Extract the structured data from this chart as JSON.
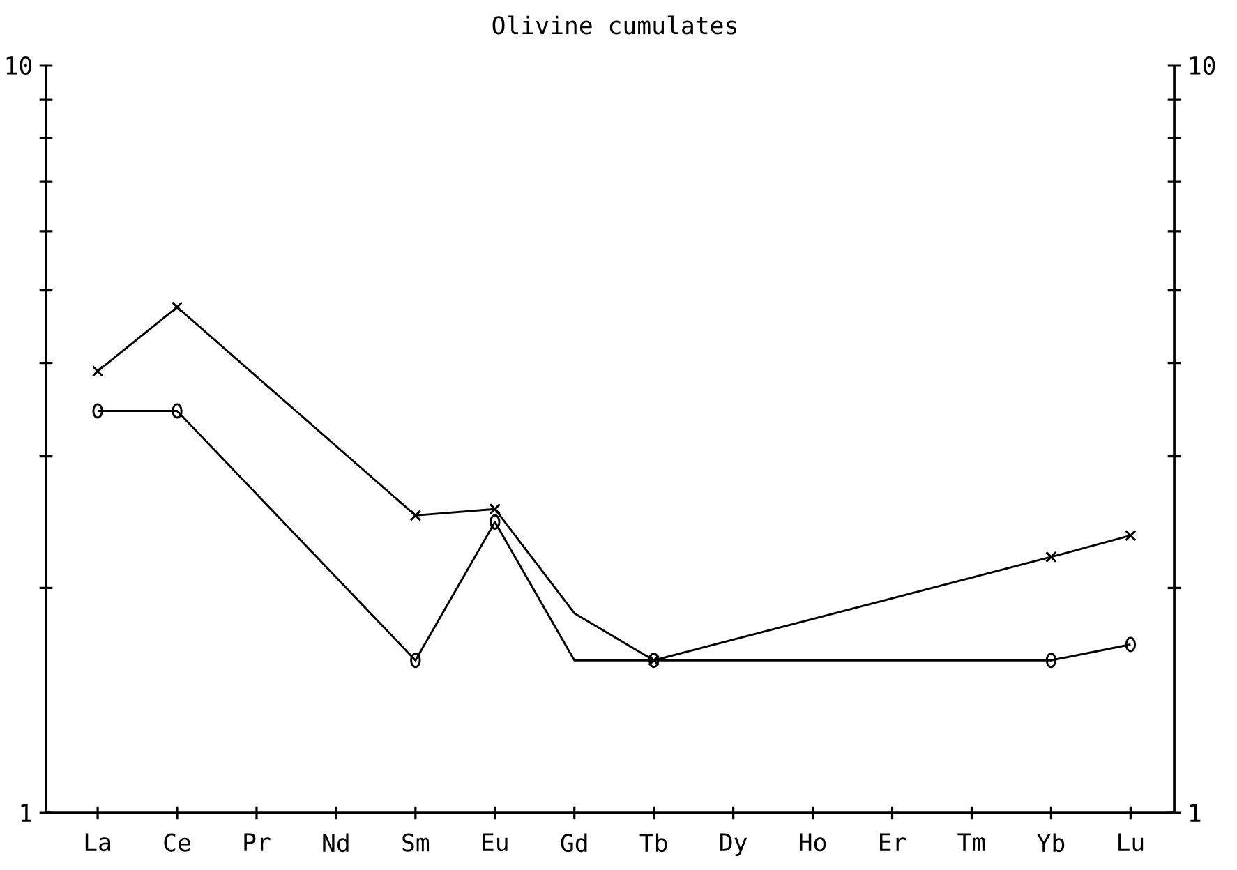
{
  "chart_data": {
    "type": "line",
    "title": "Olivine cumulates",
    "categories": [
      "La",
      "Ce",
      "Pr",
      "Nd",
      "Sm",
      "Eu",
      "Gd",
      "Tb",
      "Dy",
      "Ho",
      "Er",
      "Tm",
      "Yb",
      "Lu"
    ],
    "log": "y",
    "ylim": [
      1,
      10
    ],
    "yticks": [
      1,
      {
        "value": 2,
        "label": null
      },
      {
        "value": 3,
        "label": null
      },
      {
        "value": 4,
        "label": null
      },
      {
        "value": 5,
        "label": null
      },
      {
        "value": 6,
        "label": null
      },
      {
        "value": 7,
        "label": null
      },
      {
        "value": 8,
        "label": null
      },
      {
        "value": 9,
        "label": null
      },
      10
    ],
    "y2lim": [
      1,
      10
    ],
    "y2ticks": [
      1,
      10
    ],
    "line_style": "solid",
    "series": [
      {
        "type": "line",
        "color": "#000000",
        "marker": "none",
        "values": [
          3.9,
          4.75,
          null,
          null,
          2.5,
          2.55,
          1.85,
          1.6,
          null,
          null,
          null,
          null,
          2.2,
          2.35
        ]
      },
      {
        "type": "scatter",
        "color": "#000000",
        "marker": "cross",
        "values": [
          3.9,
          4.75,
          null,
          null,
          2.5,
          2.55,
          null,
          1.6,
          null,
          null,
          null,
          null,
          2.2,
          2.35
        ]
      },
      {
        "type": "line",
        "color": "#000000",
        "marker": "none",
        "values": [
          3.45,
          3.45,
          null,
          null,
          1.6,
          2.45,
          1.6,
          1.6,
          null,
          null,
          null,
          null,
          1.6,
          1.68
        ]
      },
      {
        "type": "scatter",
        "color": "#000000",
        "marker": "circle",
        "values": [
          3.45,
          3.45,
          null,
          null,
          1.6,
          2.45,
          null,
          1.6,
          null,
          null,
          null,
          null,
          1.6,
          1.68
        ]
      }
    ]
  }
}
